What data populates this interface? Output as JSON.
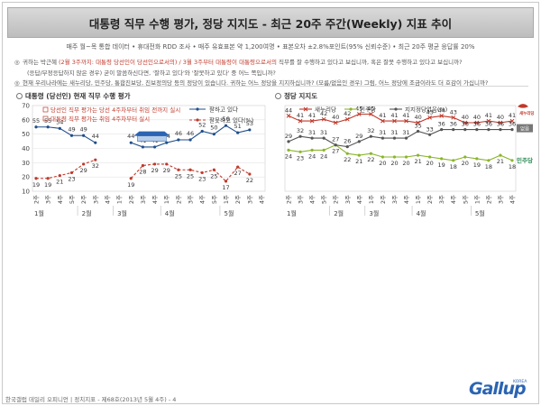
{
  "title": "대통령 직무 수행 평가, 정당 지지도 - 최근 20주 주간(Weekly) 지표 추이",
  "subtitle": "매주 월~목 통합 데이터 • 휴대전화 RDD 조사 • 매주 유효표본 약 1,200여명 • 표본오차 ±2.8%포인트(95% 신뢰수준) • 최근 20주 평균 응답률 20%",
  "notes": [
    {
      "mark": "◎",
      "parts": [
        {
          "text": "귀하는 박근혜 ",
          "red": false
        },
        {
          "text": "(2월 3주까지: 대통령 당선인이 당선인으로서의) / 3월 3주부터 대통령이 대통령으로서의",
          "red": true
        },
        {
          "text": " 직무를 잘 수행하고 있다고 보십니까, 혹은 잘못 수행하고 있다고 보십니까?",
          "red": false
        }
      ]
    },
    {
      "mark": "",
      "parts": [
        {
          "text": "(응답/부정응답하지 않은 경우) 굳이 말씀하신다면, '잘하고 있다'와 '잘못하고 있다' 중 어느 쪽입니까?",
          "red": false
        }
      ]
    },
    {
      "mark": "◎",
      "parts": [
        {
          "text": "현재 우리나라에는 새누리당, 민주당, 통합진보당, 진보정의당 등의 정당이 있습니다. 귀하는 어느 정당을 지지하십니까? (모름/없음인 경우) 그럼, 어느 정당에 조금이라도 더 호감이 가십니까?",
          "red": false
        }
      ]
    }
  ],
  "footer": "한국갤럽 데일리 오피니언 | 정치지표 - 제68호(2013년 5월 4주) - 4",
  "logo": {
    "text": "Gallup",
    "korea": "KOREA"
  },
  "colors": {
    "approve": "#1f4e8c",
    "disapprove": "#c0392b",
    "saenuri": "#c0392b",
    "minju": "#8ab52b",
    "none": "#555555",
    "grid": "#cccccc"
  },
  "chart_data": [
    {
      "type": "line",
      "title": "대통령 (당선인) 현재 직무 수행 평가",
      "legend_notes": [
        "당선인 직무 평가는 당선 4주차부터 취임 전까지 실시",
        "대통령 직무 평가는 취임 4주차부터 실시"
      ],
      "x": [
        "2주",
        "3주",
        "4주",
        "5주",
        "2주",
        "3주",
        "4주",
        "1주",
        "2주",
        "3주",
        "4주",
        "1주",
        "2주",
        "3주",
        "4주",
        "5주",
        "1주",
        "2주",
        "3주",
        "4주"
      ],
      "month_labels": [
        {
          "index": 0,
          "label": "1월"
        },
        {
          "index": 4,
          "label": "2월"
        },
        {
          "index": 7,
          "label": "3월"
        },
        {
          "index": 11,
          "label": "4월"
        },
        {
          "index": 16,
          "label": "5월"
        }
      ],
      "ylim": [
        10,
        70
      ],
      "yticks": [
        10,
        20,
        30,
        40,
        50,
        60,
        70
      ],
      "grid": true,
      "legend_position": "top-right",
      "series": [
        {
          "name": "잘하고 있다",
          "key": "approve",
          "marker": "circle",
          "dash": false,
          "values": [
            55,
            55,
            54,
            49,
            49,
            44,
            null,
            null,
            44,
            41,
            41,
            44,
            46,
            46,
            52,
            50,
            56,
            51,
            53,
            null
          ]
        },
        {
          "name": "잘못하고 있다(%)",
          "key": "disapprove",
          "marker": "circle",
          "dash": true,
          "values": [
            19,
            19,
            21,
            23,
            29,
            32,
            null,
            null,
            19,
            28,
            29,
            29,
            25,
            25,
            23,
            25,
            17,
            27,
            22,
            null
          ]
        }
      ]
    },
    {
      "type": "line",
      "title": "정당 지지도",
      "x": [
        "2주",
        "3주",
        "4주",
        "5주",
        "2주",
        "3주",
        "4주",
        "1주",
        "2주",
        "3주",
        "4주",
        "1주",
        "2주",
        "3주",
        "4주",
        "5주",
        "1주",
        "2주",
        "3주",
        "4주"
      ],
      "month_labels": [
        {
          "index": 0,
          "label": "1월"
        },
        {
          "index": 4,
          "label": "2월"
        },
        {
          "index": 7,
          "label": "3월"
        },
        {
          "index": 11,
          "label": "4월"
        },
        {
          "index": 16,
          "label": "5월"
        }
      ],
      "ylim": [
        0,
        50
      ],
      "grid": true,
      "legend_position": "top",
      "series": [
        {
          "name": "새누리당",
          "key": "saenuri",
          "marker": "cross",
          "values": [
            44,
            41,
            41,
            42,
            40,
            42,
            45,
            45,
            41,
            41,
            41,
            40,
            43,
            44,
            43,
            40,
            40,
            41,
            40,
            41
          ]
        },
        {
          "name": "민주당",
          "key": "minju",
          "marker": "circle",
          "values": [
            24,
            23,
            24,
            24,
            27,
            22,
            21,
            22,
            20,
            20,
            20,
            21,
            20,
            19,
            18,
            20,
            19,
            18,
            21,
            18
          ]
        },
        {
          "name": "지지정당없음(%)",
          "key": "none",
          "marker": "circle",
          "values": [
            29,
            32,
            31,
            31,
            27,
            26,
            29,
            32,
            31,
            31,
            31,
            35,
            33,
            36,
            36,
            36,
            36,
            36,
            36,
            36
          ]
        }
      ],
      "end_labels": {
        "saenuri": "새누리당",
        "none": "없음",
        "minju": "민주당"
      }
    }
  ]
}
